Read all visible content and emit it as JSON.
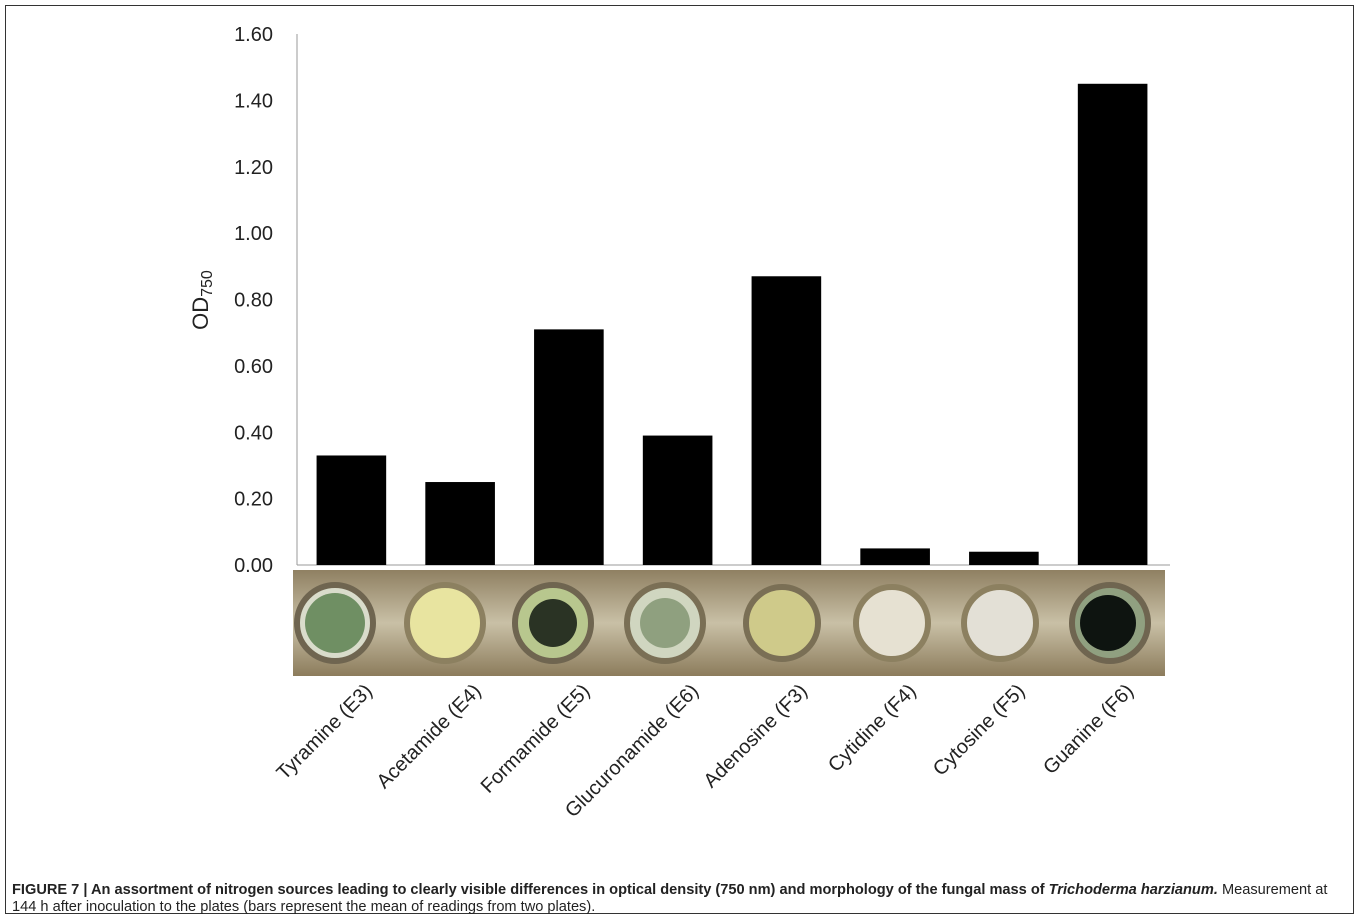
{
  "chart_data": {
    "type": "bar",
    "ylabel": "OD",
    "ylabel_subscript": "750",
    "categories": [
      "Tyramine (E3)",
      "Acetamide (E4)",
      "Formamide (E5)",
      "Glucuronamide (E6)",
      "Adenosine (F3)",
      "Cytidine (F4)",
      "Cytosine (F5)",
      "Guanine (F6)"
    ],
    "values": [
      0.33,
      0.25,
      0.71,
      0.39,
      0.87,
      0.05,
      0.04,
      1.45
    ],
    "color": "#000000",
    "ylim": [
      0,
      1.6
    ],
    "yticks": [
      {
        "value": 0,
        "label": "0.00"
      },
      {
        "value": 0.2,
        "label": "0.20"
      },
      {
        "value": 0.4,
        "label": "0.40"
      },
      {
        "value": 0.6,
        "label": "0.60"
      },
      {
        "value": 0.8,
        "label": "0.80"
      },
      {
        "value": 1.0,
        "label": "1.00"
      },
      {
        "value": 1.2,
        "label": "1.20"
      },
      {
        "value": 1.4,
        "label": "1.40"
      },
      {
        "value": 1.6,
        "label": "1.60"
      }
    ],
    "grid": false
  },
  "caption": {
    "lead": "FIGURE 7 | An assortment of nitrogen sources leading to clearly visible differences in optical density (750 nm) and morphology of the fungal mass of",
    "species": "Trichoderma harzianum.",
    "rest": "Measurement at 144 h after inoculation to the plates (bars represent the mean of readings from two plates)."
  }
}
